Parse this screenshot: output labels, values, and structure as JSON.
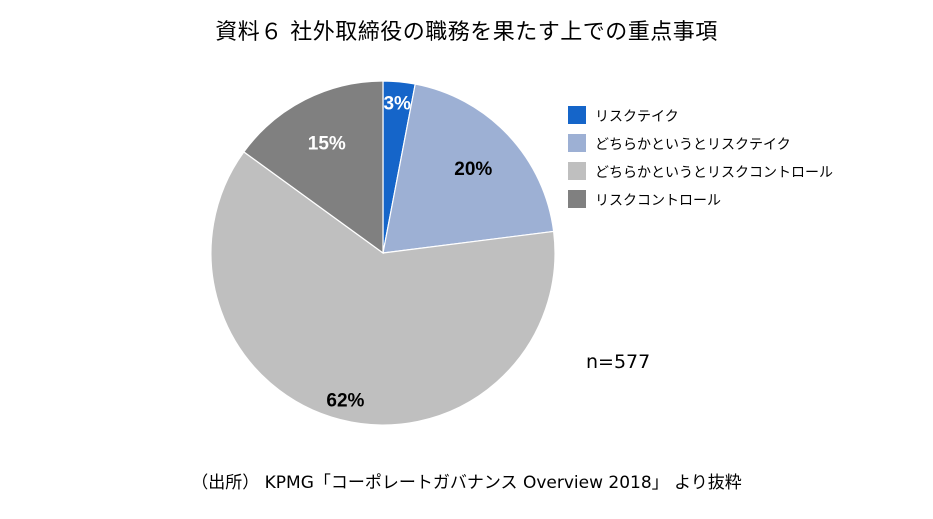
{
  "chart_data": {
    "type": "pie",
    "title": "資料６ 社外取締役の職務を果たす上での重点事項",
    "categories": [
      "リスクテイク",
      "どちらかというとリスクテイク",
      "どちらかというとリスクコントロール",
      "リスクコントロール"
    ],
    "values": [
      3,
      20,
      62,
      15
    ],
    "labels": [
      "3%",
      "20%",
      "62%",
      "15%"
    ],
    "colors": [
      "#1565C9",
      "#9DB0D4",
      "#BFBFBF",
      "#808080"
    ],
    "label_colors": [
      "#ffffff",
      "#000000",
      "#000000",
      "#ffffff"
    ],
    "start": "12 o'clock",
    "direction": "clockwise",
    "legend_position": "right",
    "annotation": "n=577",
    "source": "（出所） KPMG「コーポレートガバナンス Overview 2018」 より抜粋"
  }
}
